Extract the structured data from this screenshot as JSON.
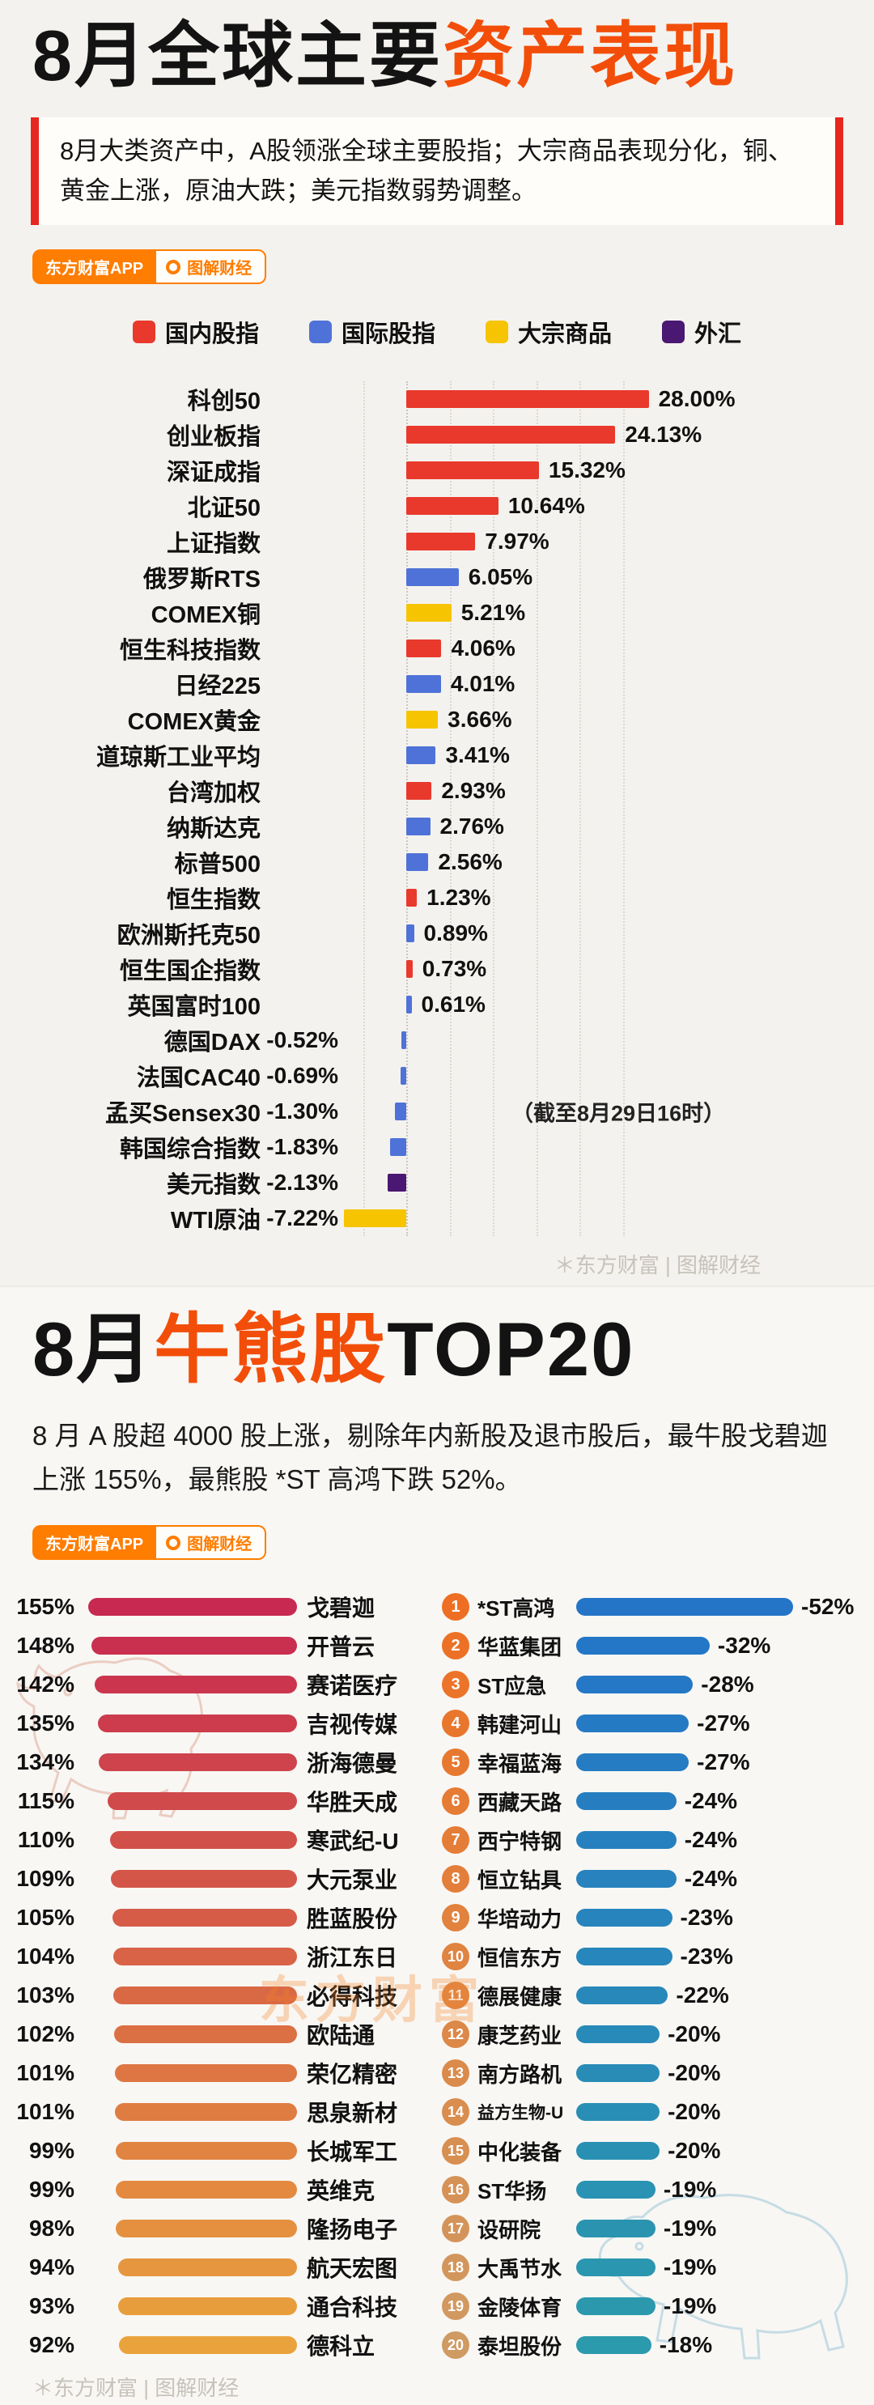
{
  "section1": {
    "title": {
      "black": "8月全球主要",
      "orange": "资产表现"
    },
    "subtitle": "8月大类资产中，A股领涨全球主要股指；大宗商品表现分化，铜、黄金上涨，原油大跌；美元指数弱势调整。",
    "badge": {
      "app": "东方财富APP",
      "brand": "图解财经"
    },
    "watermark": "＊东方财富 | 图解财经"
  },
  "section2": {
    "title": {
      "pre": "8月",
      "orange": "牛熊股",
      "post": "TOP20"
    },
    "subtitle": "8 月 A 股超 4000 股上涨，剔除年内新股及退市股后，最牛股戈碧迦上涨 155%，最熊股 *ST 高鸿下跌 52%。",
    "badge": {
      "app": "东方财富APP",
      "brand": "图解财经"
    },
    "watermark_center": "东方财富",
    "watermark_bottom": "＊东方财富 | 图解财经"
  },
  "chart_data": [
    {
      "id": "assets",
      "type": "bar",
      "orientation": "horizontal",
      "title": "8月全球主要资产表现",
      "unit": "%",
      "xlim": [
        -8,
        30
      ],
      "gridlines": [
        -5,
        0,
        5,
        10,
        15,
        20,
        25
      ],
      "legend_position": "top",
      "groups": [
        {
          "key": "domestic",
          "label": "国内股指",
          "color": "#e8392c"
        },
        {
          "key": "international",
          "label": "国际股指",
          "color": "#4f72d8"
        },
        {
          "key": "commodity",
          "label": "大宗商品",
          "color": "#f6c400"
        },
        {
          "key": "fx",
          "label": "外汇",
          "color": "#4a1772"
        }
      ],
      "rows": [
        {
          "name": "科创50",
          "value": 28.0,
          "label": "28.00%",
          "group": "domestic"
        },
        {
          "name": "创业板指",
          "value": 24.13,
          "label": "24.13%",
          "group": "domestic"
        },
        {
          "name": "深证成指",
          "value": 15.32,
          "label": "15.32%",
          "group": "domestic"
        },
        {
          "name": "北证50",
          "value": 10.64,
          "label": "10.64%",
          "group": "domestic"
        },
        {
          "name": "上证指数",
          "value": 7.97,
          "label": "7.97%",
          "group": "domestic"
        },
        {
          "name": "俄罗斯RTS",
          "value": 6.05,
          "label": "6.05%",
          "group": "international"
        },
        {
          "name": "COMEX铜",
          "value": 5.21,
          "label": "5.21%",
          "group": "commodity"
        },
        {
          "name": "恒生科技指数",
          "value": 4.06,
          "label": "4.06%",
          "group": "domestic"
        },
        {
          "name": "日经225",
          "value": 4.01,
          "label": "4.01%",
          "group": "international"
        },
        {
          "name": "COMEX黄金",
          "value": 3.66,
          "label": "3.66%",
          "group": "commodity"
        },
        {
          "name": "道琼斯工业平均",
          "value": 3.41,
          "label": "3.41%",
          "group": "international"
        },
        {
          "name": "台湾加权",
          "value": 2.93,
          "label": "2.93%",
          "group": "domestic"
        },
        {
          "name": "纳斯达克",
          "value": 2.76,
          "label": "2.76%",
          "group": "international"
        },
        {
          "name": "标普500",
          "value": 2.56,
          "label": "2.56%",
          "group": "international"
        },
        {
          "name": "恒生指数",
          "value": 1.23,
          "label": "1.23%",
          "group": "domestic"
        },
        {
          "name": "欧洲斯托克50",
          "value": 0.89,
          "label": "0.89%",
          "group": "international"
        },
        {
          "name": "恒生国企指数",
          "value": 0.73,
          "label": "0.73%",
          "group": "domestic"
        },
        {
          "name": "英国富时100",
          "value": 0.61,
          "label": "0.61%",
          "group": "international"
        },
        {
          "name": "德国DAX",
          "value": -0.52,
          "label": "-0.52%",
          "group": "international"
        },
        {
          "name": "法国CAC40",
          "value": -0.69,
          "label": "-0.69%",
          "group": "international"
        },
        {
          "name": "孟买Sensex30",
          "value": -1.3,
          "label": "-1.30%",
          "group": "international"
        },
        {
          "name": "韩国综合指数",
          "value": -1.83,
          "label": "-1.83%",
          "group": "international"
        },
        {
          "name": "美元指数",
          "value": -2.13,
          "label": "-2.13%",
          "group": "fx"
        },
        {
          "name": "WTI原油",
          "value": -7.22,
          "label": "-7.22%",
          "group": "commodity"
        }
      ],
      "note": {
        "text": "（截至8月29日16时）",
        "attach_to": "孟买Sensex30"
      }
    },
    {
      "id": "bulls",
      "type": "bar",
      "orientation": "horizontal",
      "title": "8月牛股TOP20",
      "unit": "%",
      "color_start": "#c72950",
      "color_end": "#eaa33c",
      "rows": [
        {
          "name": "戈碧迦",
          "value": 155,
          "label": "155%"
        },
        {
          "name": "开普云",
          "value": 148,
          "label": "148%"
        },
        {
          "name": "赛诺医疗",
          "value": 142,
          "label": "142%"
        },
        {
          "name": "吉视传媒",
          "value": 135,
          "label": "135%"
        },
        {
          "name": "浙海德曼",
          "value": 134,
          "label": "134%"
        },
        {
          "name": "华胜天成",
          "value": 115,
          "label": "115%"
        },
        {
          "name": "寒武纪-U",
          "value": 110,
          "label": "110%"
        },
        {
          "name": "大元泵业",
          "value": 109,
          "label": "109%"
        },
        {
          "name": "胜蓝股份",
          "value": 105,
          "label": "105%"
        },
        {
          "name": "浙江东日",
          "value": 104,
          "label": "104%"
        },
        {
          "name": "必得科技",
          "value": 103,
          "label": "103%"
        },
        {
          "name": "欧陆通",
          "value": 102,
          "label": "102%"
        },
        {
          "name": "荣亿精密",
          "value": 101,
          "label": "101%"
        },
        {
          "name": "思泉新材",
          "value": 101,
          "label": "101%"
        },
        {
          "name": "长城军工",
          "value": 99,
          "label": "99%"
        },
        {
          "name": "英维克",
          "value": 99,
          "label": "99%"
        },
        {
          "name": "隆扬电子",
          "value": 98,
          "label": "98%"
        },
        {
          "name": "航天宏图",
          "value": 94,
          "label": "94%"
        },
        {
          "name": "通合科技",
          "value": 93,
          "label": "93%"
        },
        {
          "name": "德科立",
          "value": 92,
          "label": "92%"
        }
      ]
    },
    {
      "id": "bears",
      "type": "bar",
      "orientation": "horizontal",
      "title": "8月熊股TOP20",
      "unit": "%",
      "color_start": "#2474c8",
      "color_end": "#2b9aac",
      "badge_color_start": "#ee6f23",
      "badge_color_end": "#cf9b63",
      "rows": [
        {
          "rank": 1,
          "name": "*ST高鸿",
          "value": -52,
          "label": "-52%"
        },
        {
          "rank": 2,
          "name": "华蓝集团",
          "value": -32,
          "label": "-32%"
        },
        {
          "rank": 3,
          "name": "ST应急",
          "value": -28,
          "label": "-28%"
        },
        {
          "rank": 4,
          "name": "韩建河山",
          "value": -27,
          "label": "-27%"
        },
        {
          "rank": 5,
          "name": "幸福蓝海",
          "value": -27,
          "label": "-27%"
        },
        {
          "rank": 6,
          "name": "西藏天路",
          "value": -24,
          "label": "-24%"
        },
        {
          "rank": 7,
          "name": "西宁特钢",
          "value": -24,
          "label": "-24%"
        },
        {
          "rank": 8,
          "name": "恒立钻具",
          "value": -24,
          "label": "-24%"
        },
        {
          "rank": 9,
          "name": "华培动力",
          "value": -23,
          "label": "-23%"
        },
        {
          "rank": 10,
          "name": "恒信东方",
          "value": -23,
          "label": "-23%"
        },
        {
          "rank": 11,
          "name": "德展健康",
          "value": -22,
          "label": "-22%"
        },
        {
          "rank": 12,
          "name": "康芝药业",
          "value": -20,
          "label": "-20%"
        },
        {
          "rank": 13,
          "name": "南方路机",
          "value": -20,
          "label": "-20%"
        },
        {
          "rank": 14,
          "name": "益方生物-U",
          "value": -20,
          "label": "-20%"
        },
        {
          "rank": 15,
          "name": "中化装备",
          "value": -20,
          "label": "-20%"
        },
        {
          "rank": 16,
          "name": "ST华扬",
          "value": -19,
          "label": "-19%"
        },
        {
          "rank": 17,
          "name": "设研院",
          "value": -19,
          "label": "-19%"
        },
        {
          "rank": 18,
          "name": "大禹节水",
          "value": -19,
          "label": "-19%"
        },
        {
          "rank": 19,
          "name": "金陵体育",
          "value": -19,
          "label": "-19%"
        },
        {
          "rank": 20,
          "name": "泰坦股份",
          "value": -18,
          "label": "-18%"
        }
      ]
    }
  ]
}
